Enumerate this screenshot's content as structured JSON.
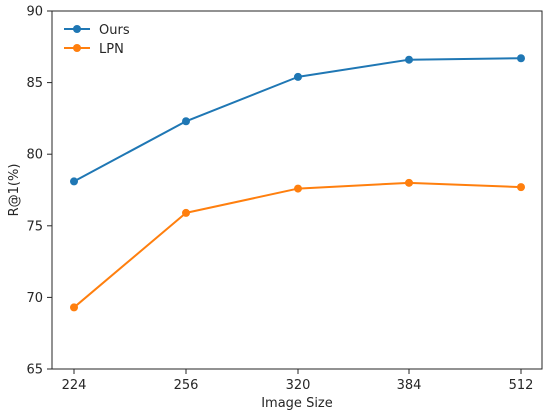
{
  "chart_data": {
    "type": "line",
    "title": "",
    "xlabel": "Image Size",
    "ylabel": "R@1(%)",
    "categories": [
      "224",
      "256",
      "320",
      "384",
      "512"
    ],
    "ylim": [
      65,
      90
    ],
    "yticks": [
      65,
      70,
      75,
      80,
      85,
      90
    ],
    "grid": false,
    "legend_position": "top-left",
    "series": [
      {
        "name": "Ours",
        "color": "#1f77b4",
        "values": [
          78.1,
          82.3,
          85.4,
          86.6,
          86.7
        ]
      },
      {
        "name": "LPN",
        "color": "#ff7f0e",
        "values": [
          69.3,
          75.9,
          77.6,
          78.0,
          77.7
        ]
      }
    ]
  }
}
